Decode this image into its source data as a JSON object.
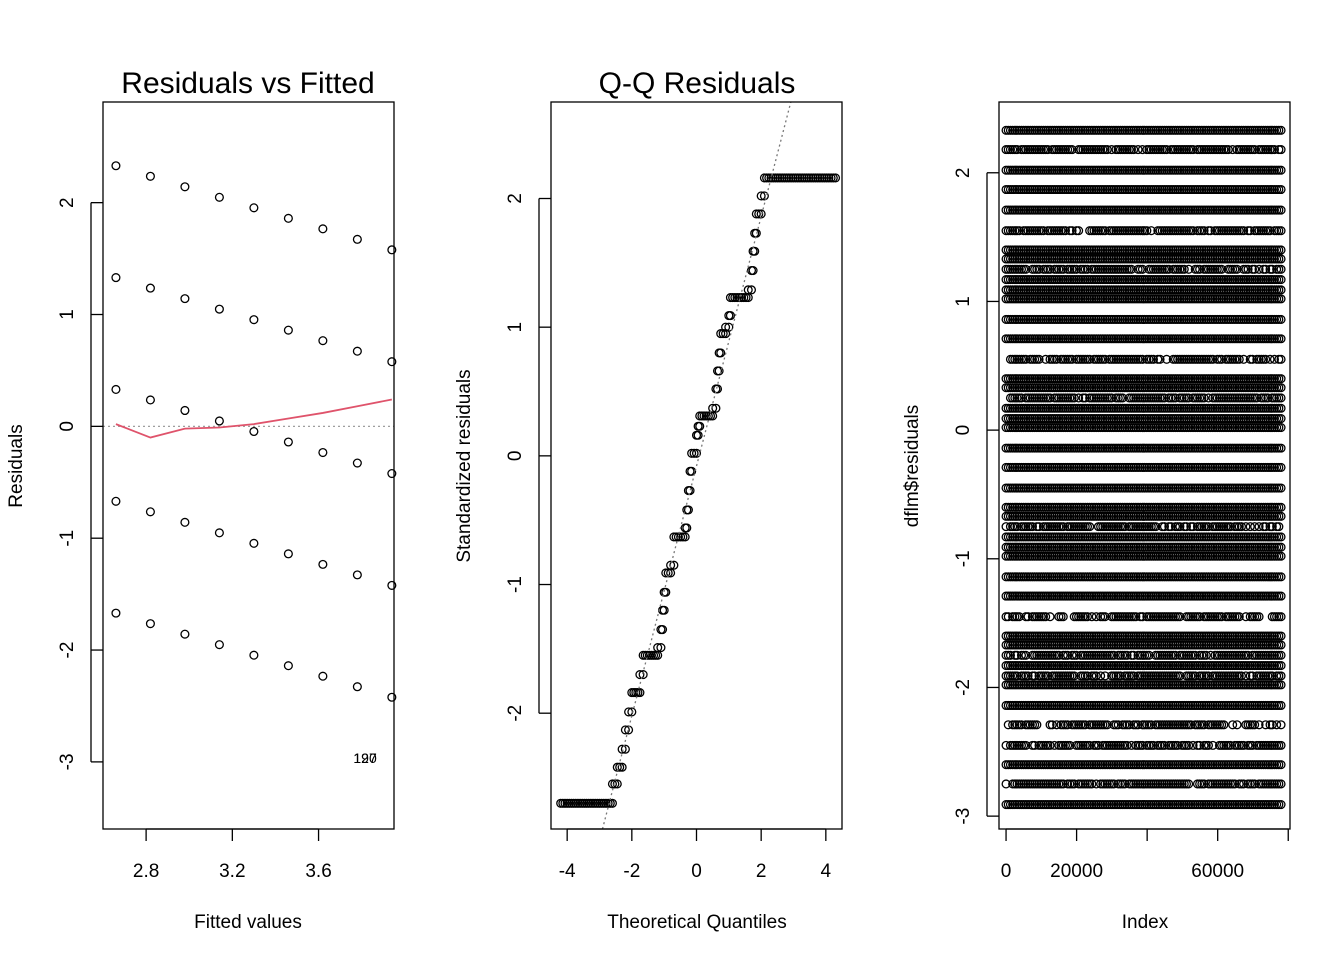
{
  "chart_data": [
    {
      "type": "scatter",
      "title": "Residuals vs Fitted",
      "xlabel": "Fitted values",
      "ylabel": "Residuals",
      "xlim": [
        2.6,
        3.95
      ],
      "ylim": [
        -3.6,
        2.9
      ],
      "xticks": [
        2.8,
        3.2,
        3.6
      ],
      "xtick_labels": [
        "2.8",
        "3.2",
        "3.6"
      ],
      "yticks": [
        -3,
        -2,
        -1,
        0,
        1,
        2
      ],
      "ytick_labels": [
        "-3",
        "-2",
        "-1",
        "0",
        "1",
        "2"
      ],
      "fitted": [
        2.66,
        2.82,
        2.98,
        3.14,
        3.3,
        3.46,
        3.62,
        3.78,
        3.94
      ],
      "offsets": [
        2,
        1,
        0,
        -1,
        -2
      ],
      "base_at_first": 0.33,
      "base_slope": -0.094,
      "smooth_line": {
        "color": "#DF536B",
        "x": [
          2.66,
          2.82,
          2.98,
          3.14,
          3.3,
          3.46,
          3.62,
          3.78,
          3.94
        ],
        "y": [
          0.02,
          -0.1,
          -0.02,
          -0.01,
          0.02,
          0.07,
          0.12,
          0.18,
          0.24
        ]
      },
      "reference_line": {
        "y": 0,
        "color": "#9e9e9e"
      },
      "annotation": {
        "text": "127",
        "x": 3.87,
        "y": -2.92,
        "overlap_text": "190"
      }
    },
    {
      "type": "scatter",
      "title": "Q-Q Residuals",
      "xlabel": "Theoretical Quantiles",
      "ylabel": "Standardized residuals",
      "xlim": [
        -4.5,
        4.5
      ],
      "ylim": [
        -2.9,
        2.75
      ],
      "xticks": [
        -4,
        -2,
        0,
        2,
        4
      ],
      "xtick_labels": [
        "-4",
        "-2",
        "0",
        "2",
        "4"
      ],
      "yticks": [
        -2,
        -1,
        0,
        1,
        2
      ],
      "ytick_labels": [
        "-2",
        "-1",
        "0",
        "1",
        "2"
      ],
      "qq_line": {
        "slope": 0.97,
        "intercept": -0.08,
        "color": "#777777"
      },
      "steps": [
        {
          "x0": -4.2,
          "x1": -2.6,
          "y": -2.7
        },
        {
          "x0": -2.6,
          "x1": -2.45,
          "y": -2.55
        },
        {
          "x0": -2.45,
          "x1": -2.3,
          "y": -2.42
        },
        {
          "x0": -2.3,
          "x1": -2.2,
          "y": -2.28
        },
        {
          "x0": -2.2,
          "x1": -2.1,
          "y": -2.13
        },
        {
          "x0": -2.1,
          "x1": -2.0,
          "y": -1.99
        },
        {
          "x0": -2.0,
          "x1": -1.75,
          "y": -1.84
        },
        {
          "x0": -1.75,
          "x1": -1.65,
          "y": -1.7
        },
        {
          "x0": -1.65,
          "x1": -1.2,
          "y": -1.55
        },
        {
          "x0": -1.2,
          "x1": -1.1,
          "y": -1.49
        },
        {
          "x0": -1.1,
          "x1": -1.05,
          "y": -1.35
        },
        {
          "x0": -1.05,
          "x1": -1.0,
          "y": -1.2
        },
        {
          "x0": -1.0,
          "x1": -0.95,
          "y": -1.06
        },
        {
          "x0": -0.95,
          "x1": -0.8,
          "y": -0.91
        },
        {
          "x0": -0.8,
          "x1": -0.7,
          "y": -0.85
        },
        {
          "x0": -0.7,
          "x1": -0.35,
          "y": -0.63
        },
        {
          "x0": -0.35,
          "x1": -0.3,
          "y": -0.56
        },
        {
          "x0": -0.3,
          "x1": -0.25,
          "y": -0.42
        },
        {
          "x0": -0.25,
          "x1": -0.2,
          "y": -0.27
        },
        {
          "x0": -0.2,
          "x1": -0.15,
          "y": -0.12
        },
        {
          "x0": -0.15,
          "x1": 0.0,
          "y": 0.02
        },
        {
          "x0": 0.0,
          "x1": 0.05,
          "y": 0.16
        },
        {
          "x0": 0.05,
          "x1": 0.1,
          "y": 0.23
        },
        {
          "x0": 0.1,
          "x1": 0.5,
          "y": 0.31
        },
        {
          "x0": 0.5,
          "x1": 0.6,
          "y": 0.37
        },
        {
          "x0": 0.6,
          "x1": 0.65,
          "y": 0.52
        },
        {
          "x0": 0.65,
          "x1": 0.7,
          "y": 0.66
        },
        {
          "x0": 0.7,
          "x1": 0.75,
          "y": 0.8
        },
        {
          "x0": 0.75,
          "x1": 0.9,
          "y": 0.95
        },
        {
          "x0": 0.9,
          "x1": 1.0,
          "y": 1.0
        },
        {
          "x0": 1.0,
          "x1": 1.05,
          "y": 1.09
        },
        {
          "x0": 1.05,
          "x1": 1.6,
          "y": 1.23
        },
        {
          "x0": 1.6,
          "x1": 1.7,
          "y": 1.29
        },
        {
          "x0": 1.7,
          "x1": 1.75,
          "y": 1.44
        },
        {
          "x0": 1.75,
          "x1": 1.8,
          "y": 1.59
        },
        {
          "x0": 1.8,
          "x1": 1.85,
          "y": 1.73
        },
        {
          "x0": 1.85,
          "x1": 2.0,
          "y": 1.88
        },
        {
          "x0": 2.0,
          "x1": 2.1,
          "y": 2.02
        },
        {
          "x0": 2.1,
          "x1": 4.3,
          "y": 2.16
        }
      ]
    },
    {
      "type": "scatter",
      "title": "",
      "xlabel": "Index",
      "ylabel": "dflm$residuals",
      "xlim": [
        -2000,
        80500
      ],
      "ylim": [
        -3.1,
        2.55
      ],
      "xticks": [
        0,
        20000,
        40000,
        60000,
        80000
      ],
      "xtick_labels": [
        "0",
        "20000",
        "",
        "60000",
        ""
      ],
      "yticks": [
        -3,
        -2,
        -1,
        0,
        1,
        2
      ],
      "ytick_labels": [
        "-3",
        "-2",
        "-1",
        "0",
        "1",
        "2"
      ],
      "n": 78500,
      "levels": [
        2.33,
        2.18,
        2.02,
        1.87,
        1.71,
        1.55,
        1.4,
        1.33,
        1.25,
        1.17,
        1.09,
        1.02,
        0.86,
        0.71,
        0.55,
        0.4,
        0.33,
        0.25,
        0.17,
        0.09,
        0.02,
        -0.14,
        -0.29,
        -0.45,
        -0.6,
        -0.67,
        -0.75,
        -0.83,
        -0.91,
        -0.98,
        -1.14,
        -1.29,
        -1.45,
        -1.6,
        -1.67,
        -1.75,
        -1.83,
        -1.91,
        -1.98,
        -2.14,
        -2.29,
        -2.45,
        -2.6,
        -2.75,
        -2.91
      ],
      "sparse_levels": [
        2.18,
        1.55,
        1.25,
        0.55,
        0.25,
        -0.75,
        -1.45,
        -1.75,
        -1.91,
        -2.29,
        -2.45,
        -2.75
      ]
    }
  ]
}
